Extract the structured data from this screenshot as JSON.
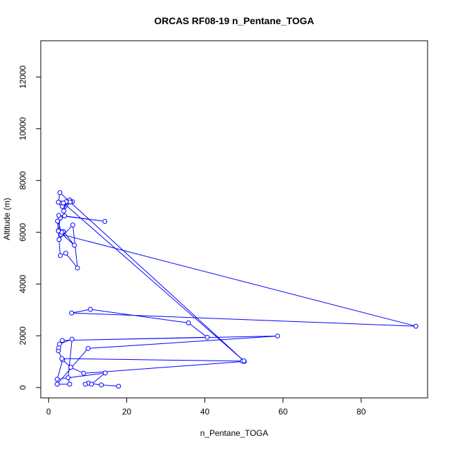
{
  "chart_data": {
    "type": "scatter",
    "title": "ORCAS RF08-19 n_Pentane_TOGA",
    "xlabel": "n_Pentane_TOGA",
    "ylabel": "Altitude (m)",
    "xlim": [
      -2,
      97
    ],
    "ylim": [
      -400,
      13400
    ],
    "x_ticks": [
      0,
      20,
      40,
      60,
      80
    ],
    "y_ticks": [
      0,
      2000,
      4000,
      6000,
      8000,
      10000,
      12000
    ],
    "grid": false,
    "connected": true,
    "series_color": "#0000ff",
    "series": [
      {
        "x": [
          17.9,
          13.5,
          10.2,
          9.4,
          11.0,
          14.5,
          2.2,
          3.6,
          5.7,
          9.0,
          50.1,
          49.6,
          3.4,
          2.5,
          2.6,
          2.8,
          6.0,
          5.0,
          5.4,
          2.2,
          10.1,
          58.6,
          3.5,
          40.6,
          35.8,
          10.7,
          5.9,
          94.0,
          3.2,
          2.7,
          6.2,
          7.4,
          4.4,
          3.0,
          2.5,
          6.6,
          3.8,
          3.4,
          2.3,
          2.5,
          3.0,
          2.6,
          14.4,
          4.1,
          3.5,
          6.1,
          5.6,
          3.2,
          5.4,
          5.5,
          3.9,
          4.5,
          3.8,
          50.0,
          2.9,
          2.5
        ],
        "y": [
          50,
          100,
          170,
          130,
          130,
          560,
          320,
          1070,
          780,
          550,
          1010,
          1020,
          1120,
          1420,
          1540,
          1680,
          1870,
          380,
          130,
          130,
          1510,
          1990,
          1820,
          1940,
          2500,
          3020,
          2880,
          2370,
          5920,
          5720,
          6280,
          4620,
          5190,
          5100,
          6060,
          5500,
          6030,
          6000,
          6430,
          6050,
          6550,
          6650,
          6420,
          6630,
          7000,
          7180,
          7180,
          7130,
          7250,
          7170,
          6820,
          7180,
          7130,
          1030,
          7530,
          7160
        ]
      }
    ],
    "annotations": []
  }
}
